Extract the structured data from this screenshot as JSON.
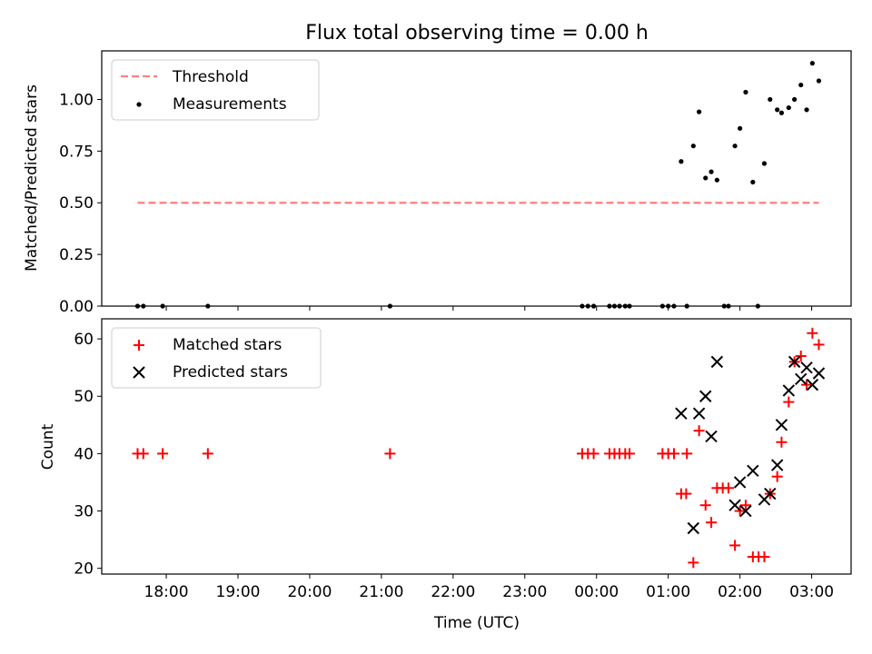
{
  "title": "Flux total observing time = 0.00 h",
  "colors": {
    "threshold": "#ff7f7f",
    "measurement": "#000000",
    "matched": "#ff0000",
    "predicted": "#000000"
  },
  "chart_data": [
    {
      "type": "scatter",
      "ylabel": "Matched/Predicted stars",
      "xlim": [
        17.1,
        27.55
      ],
      "ylim": [
        0,
        1.235
      ],
      "yticks": [
        0,
        0.25,
        0.5,
        0.75,
        1.0
      ],
      "ytick_labels": [
        "0.00",
        "0.25",
        "0.50",
        "0.75",
        "1.00"
      ],
      "legend": {
        "position": "upper-left",
        "entries": [
          "Threshold",
          "Measurements"
        ]
      },
      "threshold": {
        "name": "Threshold",
        "value": 0.5,
        "x_range": [
          17.6,
          27.1
        ]
      },
      "series": [
        {
          "name": "Measurements",
          "x": [
            17.6,
            17.68,
            17.95,
            18.58,
            21.12,
            23.8,
            23.88,
            23.96,
            24.18,
            24.25,
            24.32,
            24.4,
            24.46,
            24.92,
            25.0,
            25.08,
            25.26,
            25.78,
            25.84,
            26.25,
            25.18,
            25.35,
            25.43,
            25.52,
            25.6,
            25.68,
            25.93,
            26.0,
            26.08,
            26.18,
            26.34,
            26.42,
            26.52,
            26.58,
            26.68,
            26.76,
            26.85,
            26.93,
            27.01,
            27.1
          ],
          "y": [
            0,
            0,
            0,
            0,
            0,
            0,
            0,
            0,
            0,
            0,
            0,
            0,
            0,
            0,
            0,
            0,
            0,
            0,
            0,
            0,
            0.7,
            0.775,
            0.94,
            0.62,
            0.65,
            0.61,
            0.775,
            0.86,
            1.035,
            0.6,
            0.69,
            1.0,
            0.95,
            0.935,
            0.96,
            1.0,
            1.07,
            0.95,
            1.175,
            1.09
          ]
        }
      ]
    },
    {
      "type": "scatter",
      "ylabel": "Count",
      "xlabel": "Time (UTC)",
      "xlim": [
        17.1,
        27.55
      ],
      "ylim": [
        19,
        63.5
      ],
      "yticks": [
        20,
        30,
        40,
        50,
        60
      ],
      "ytick_labels": [
        "20",
        "30",
        "40",
        "50",
        "60"
      ],
      "xticks": [
        18,
        19,
        20,
        21,
        22,
        23,
        24,
        25,
        26,
        27
      ],
      "xtick_labels": [
        "18:00",
        "19:00",
        "20:00",
        "21:00",
        "22:00",
        "23:00",
        "00:00",
        "01:00",
        "02:00",
        "03:00"
      ],
      "legend": {
        "position": "upper-left",
        "entries": [
          "Matched stars",
          "Predicted stars"
        ]
      },
      "series": [
        {
          "name": "Matched stars",
          "marker": "plus",
          "x": [
            17.6,
            17.68,
            17.95,
            18.58,
            21.12,
            23.8,
            23.88,
            23.96,
            24.18,
            24.25,
            24.32,
            24.4,
            24.46,
            24.92,
            25.0,
            25.08,
            25.26,
            25.18,
            25.25,
            25.35,
            25.43,
            25.52,
            25.6,
            25.68,
            25.76,
            25.84,
            25.93,
            26.0,
            26.08,
            26.18,
            26.26,
            26.34,
            26.42,
            26.52,
            26.58,
            26.68,
            26.76,
            26.85,
            26.93,
            27.01,
            27.1
          ],
          "y": [
            40,
            40,
            40,
            40,
            40,
            40,
            40,
            40,
            40,
            40,
            40,
            40,
            40,
            40,
            40,
            40,
            40,
            33,
            33,
            21,
            44,
            31,
            28,
            34,
            34,
            34,
            24,
            30,
            31,
            22,
            22,
            22,
            33,
            36,
            42,
            49,
            56,
            57,
            52,
            61,
            59
          ]
        },
        {
          "name": "Predicted stars",
          "marker": "x",
          "x": [
            25.18,
            25.35,
            25.43,
            25.52,
            25.6,
            25.68,
            25.93,
            26.0,
            26.08,
            26.18,
            26.34,
            26.42,
            26.52,
            26.58,
            26.68,
            26.76,
            26.85,
            26.93,
            27.01,
            27.1
          ],
          "y": [
            47,
            27,
            47,
            50,
            43,
            56,
            31,
            35,
            30,
            37,
            32,
            33,
            38,
            45,
            51,
            56,
            53,
            55,
            52,
            54
          ]
        }
      ]
    }
  ]
}
